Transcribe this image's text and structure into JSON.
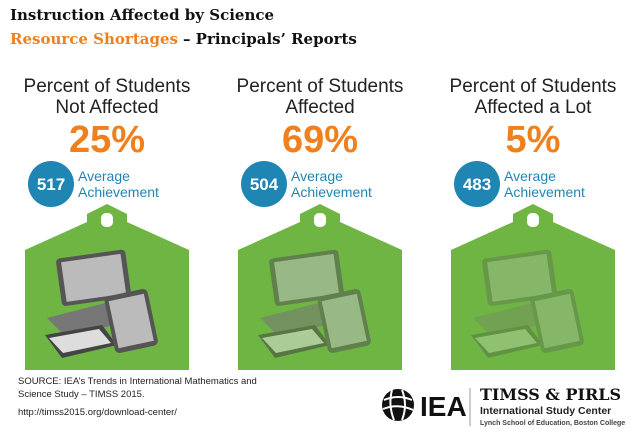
{
  "header": {
    "title_line1": "Instruction Affected by Science",
    "title_highlight": "Resource Shortages",
    "title_rest": "– Principals’ Reports"
  },
  "panels": [
    {
      "label": [
        "Percent of Students",
        "Not Affected"
      ],
      "percent": "25%",
      "score": "517",
      "score_label": [
        "Average",
        "Achievement"
      ]
    },
    {
      "label": [
        "Percent of Students",
        "Affected"
      ],
      "percent": "69%",
      "score": "504",
      "score_label": [
        "Average",
        "Achievement"
      ]
    },
    {
      "label": [
        "Percent of Students",
        "Affected a Lot"
      ],
      "percent": "5%",
      "score": "483",
      "score_label": [
        "Average",
        "Achievement"
      ]
    }
  ],
  "footer": {
    "source": [
      "SOURCE: IEA’s Trends in International Mathematics and",
      "Science Study – TIMSS 2015.",
      "http://timss2015.org/download-center/"
    ],
    "iea": "IEA",
    "timss": "TIMSS & PIRLS",
    "center": "International Study Center",
    "school": "Lynch School of Education, Boston College"
  }
}
